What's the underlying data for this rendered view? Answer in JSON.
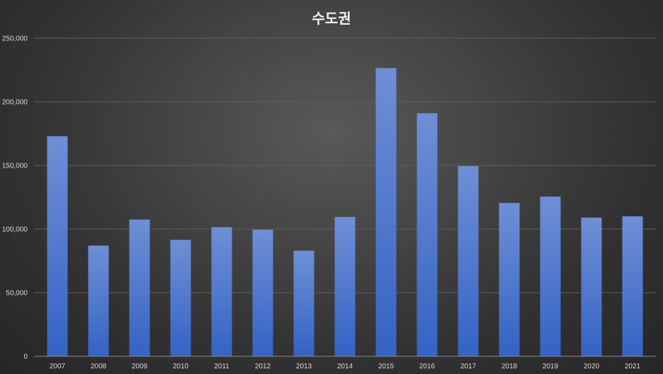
{
  "chart_data": {
    "type": "bar",
    "title": "수도권",
    "xlabel": "",
    "ylabel": "",
    "categories": [
      "2007",
      "2008",
      "2009",
      "2010",
      "2011",
      "2012",
      "2013",
      "2014",
      "2015",
      "2016",
      "2017",
      "2018",
      "2019",
      "2020",
      "2021"
    ],
    "series": [
      {
        "values": [
          173000,
          87000,
          107500,
          91500,
          101500,
          99500,
          83000,
          109500,
          226500,
          191000,
          149500,
          120500,
          125500,
          109000,
          110000
        ]
      }
    ],
    "ylim": [
      0,
      250000
    ],
    "yticks": [
      0,
      50000,
      100000,
      150000,
      200000,
      250000
    ],
    "ytick_labels": [
      "0",
      "50,000",
      "100,000",
      "150,000",
      "200,000",
      "250,000"
    ],
    "grid": true,
    "legend": "none",
    "colors": {
      "bar_top": "#6f8fd6",
      "bar_bottom": "#3463c4",
      "grid": "#5e5e5e",
      "axis": "#8c8c8c",
      "text": "#d9d9d9"
    }
  }
}
